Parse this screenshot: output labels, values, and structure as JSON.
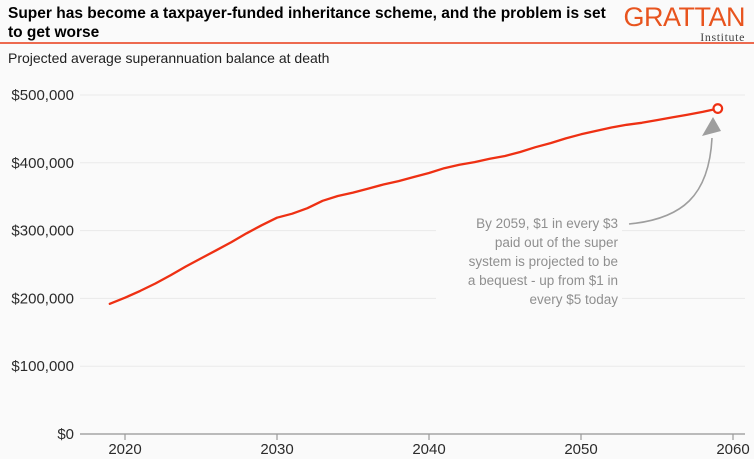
{
  "header": {
    "title_lines": [
      "Super has become a taxpayer-funded inheritance scheme, and the problem is set",
      "to get worse"
    ],
    "logo": {
      "name": "GRATTAN",
      "sub": "Institute"
    }
  },
  "subtitle": "Projected average superannuation balance at death",
  "annotation": {
    "lines": [
      "By 2059, $1 in every $3",
      "paid out of the super",
      "system is projected to be",
      "a bequest - up from $1 in",
      "every $5 today"
    ]
  },
  "colors": {
    "line": "#ee3013",
    "logo_orange": "#e8541e",
    "rule": "#ed6a4f",
    "grid": "#e9e9e9",
    "axis": "#b0b0b0",
    "tick": "#9a9a9a",
    "axis_label": "#2b2b2b",
    "annotation_text": "#8f8f8f",
    "arrow": "#9e9e9e",
    "background": "#fafafa",
    "marker_fill": "#ffffff"
  },
  "chart_data": {
    "type": "line",
    "title": "Projected average superannuation balance at death",
    "series_name": "Projected average super balance at death",
    "x": [
      2019,
      2020,
      2021,
      2022,
      2023,
      2024,
      2025,
      2026,
      2027,
      2028,
      2029,
      2030,
      2031,
      2032,
      2033,
      2034,
      2035,
      2036,
      2037,
      2038,
      2039,
      2040,
      2041,
      2042,
      2043,
      2044,
      2045,
      2046,
      2047,
      2048,
      2049,
      2050,
      2051,
      2052,
      2053,
      2054,
      2055,
      2056,
      2057,
      2058,
      2059
    ],
    "values": [
      192000,
      201000,
      211000,
      222000,
      234000,
      247000,
      259000,
      271000,
      283000,
      296000,
      308000,
      319000,
      325000,
      333000,
      344000,
      351000,
      356000,
      362000,
      368000,
      373000,
      379000,
      385000,
      392000,
      397000,
      401000,
      406000,
      410000,
      416000,
      423000,
      429000,
      436000,
      442000,
      447000,
      452000,
      456000,
      459000,
      463000,
      467000,
      471000,
      475000,
      480000
    ],
    "x_ticks": {
      "values": [
        2020,
        2030,
        2040,
        2050,
        2060
      ],
      "labels": [
        "2020",
        "2030",
        "2040",
        "2050",
        "2060"
      ]
    },
    "y_ticks": {
      "values": [
        0,
        100000,
        200000,
        300000,
        400000,
        500000
      ],
      "labels": [
        "$0",
        "$100,000",
        "$200,000",
        "$300,000",
        "$400,000",
        "$500,000"
      ]
    },
    "xlim": [
      2019,
      2060
    ],
    "ylim": [
      0,
      500000
    ],
    "grid": true,
    "legend": false,
    "endpoint_marker": true,
    "endpoint_value_label": ""
  }
}
